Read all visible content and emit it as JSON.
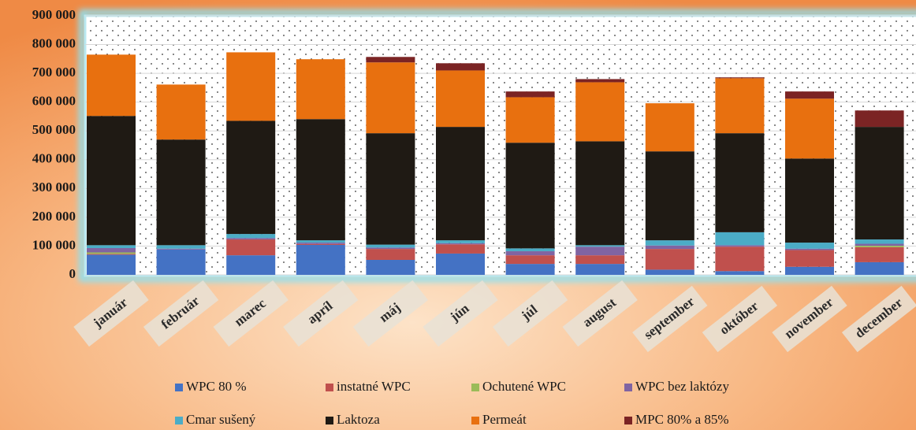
{
  "chart_data": {
    "type": "stacked_bar",
    "categories": [
      "január",
      "február",
      "marec",
      "apríl",
      "máj",
      "jún",
      "júl",
      "august",
      "september",
      "október",
      "november",
      "december"
    ],
    "series": [
      {
        "name": "WPC 80 %",
        "color": "#4472c4",
        "values": [
          70000,
          88000,
          68000,
          104000,
          52000,
          74000,
          38000,
          38000,
          18000,
          13000,
          28000,
          44000
        ]
      },
      {
        "name": "instatné WPC",
        "color": "#c0504d",
        "values": [
          3000,
          0,
          55000,
          3000,
          38000,
          32000,
          30000,
          30000,
          72000,
          85000,
          58000,
          52000
        ]
      },
      {
        "name": "Ochutené WPC",
        "color": "#9bbb59",
        "values": [
          5000,
          0,
          0,
          0,
          0,
          0,
          0,
          0,
          0,
          0,
          0,
          5000
        ]
      },
      {
        "name": "WPC bez laktózy",
        "color": "#8064a2",
        "values": [
          15000,
          3000,
          5000,
          5000,
          5000,
          4000,
          14000,
          30000,
          12000,
          5000,
          5000,
          7000
        ]
      },
      {
        "name": "Cmar sušený",
        "color": "#4bacc6",
        "values": [
          10000,
          12000,
          14000,
          8000,
          10000,
          10000,
          10000,
          5000,
          18000,
          45000,
          21000,
          15000
        ]
      },
      {
        "name": "Laktoza",
        "color": "#1f1a14",
        "values": [
          449000,
          367000,
          393000,
          421000,
          387000,
          394000,
          367000,
          361000,
          309000,
          344000,
          292000,
          391000
        ]
      },
      {
        "name": "Permeát",
        "color": "#e8700f",
        "values": [
          213000,
          191000,
          238000,
          208000,
          246000,
          196000,
          158000,
          205000,
          167000,
          191000,
          208000,
          0
        ]
      },
      {
        "name": "MPC 80% a 85%",
        "color": "#7b2424",
        "values": [
          0,
          0,
          0,
          0,
          19000,
          25000,
          20000,
          11000,
          0,
          3000,
          25000,
          57000
        ]
      }
    ],
    "ylim": [
      0,
      900000
    ],
    "yticks": [
      0,
      {
        "value": 100000,
        "label": "100 000"
      },
      {
        "value": 200000,
        "label": "200 000"
      },
      {
        "value": 300000,
        "label": "300 000"
      },
      {
        "value": 400000,
        "label": "400 000"
      },
      {
        "value": 500000,
        "label": "500 000"
      },
      {
        "value": 600000,
        "label": "600 000"
      },
      {
        "value": 700000,
        "label": "700 000"
      },
      {
        "value": 800000,
        "label": "800 000"
      },
      {
        "value": 900000,
        "label": "900 000"
      }
    ],
    "grid": true
  }
}
